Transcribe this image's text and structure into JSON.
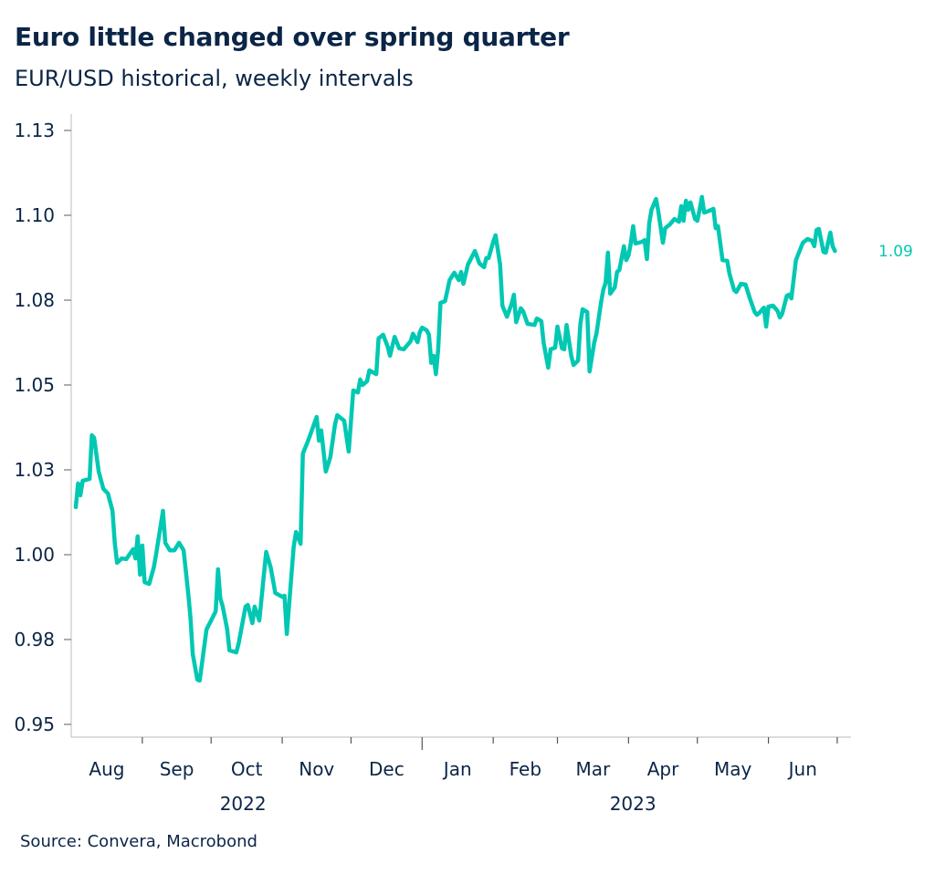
{
  "chart_data": {
    "type": "line",
    "title": "Euro little changed over spring quarter",
    "subtitle": "EUR/USD historical, weekly intervals",
    "source": "Source: Convera, Macrobond",
    "xlabel": "",
    "ylabel": "",
    "ylim": [
      0.95,
      1.125
    ],
    "yticks": [
      0.95,
      0.975,
      1.0,
      1.025,
      1.05,
      1.075,
      1.1,
      1.125
    ],
    "ytick_labels": [
      "0.95",
      "0.98",
      "1.00",
      "1.03",
      "1.05",
      "1.08",
      "1.10",
      "1.13"
    ],
    "xlim": [
      "2022-08-01",
      "2023-07-07"
    ],
    "month_labels": [
      {
        "label": "Aug",
        "start": "2022-08-01",
        "end": "2022-09-01"
      },
      {
        "label": "Sep",
        "start": "2022-09-01",
        "end": "2022-10-01"
      },
      {
        "label": "Oct",
        "start": "2022-10-01",
        "end": "2022-11-01"
      },
      {
        "label": "Nov",
        "start": "2022-11-01",
        "end": "2022-12-01"
      },
      {
        "label": "Dec",
        "start": "2022-12-01",
        "end": "2023-01-01"
      },
      {
        "label": "Jan",
        "start": "2023-01-01",
        "end": "2023-02-01"
      },
      {
        "label": "Feb",
        "start": "2023-02-01",
        "end": "2023-03-01"
      },
      {
        "label": "Mar",
        "start": "2023-03-01",
        "end": "2023-04-01"
      },
      {
        "label": "Apr",
        "start": "2023-04-01",
        "end": "2023-05-01"
      },
      {
        "label": "May",
        "start": "2023-05-01",
        "end": "2023-06-01"
      },
      {
        "label": "Jun",
        "start": "2023-06-01",
        "end": "2023-07-01"
      }
    ],
    "year_labels": [
      {
        "label": "2022",
        "start": "2022-08-01",
        "end": "2023-01-01"
      },
      {
        "label": "2023",
        "start": "2023-01-01",
        "end": "2023-07-07"
      }
    ],
    "grid": false,
    "line_color": "#00c8b2",
    "text_color": "#0b2547",
    "last_value_label": "1.09",
    "series": [
      {
        "x": [
          "2022-08-03",
          "2022-08-04",
          "2022-08-05",
          "2022-08-06",
          "2022-08-09",
          "2022-08-10",
          "2022-08-11",
          "2022-08-13",
          "2022-08-15",
          "2022-08-17",
          "2022-08-19",
          "2022-08-20",
          "2022-08-21",
          "2022-08-23",
          "2022-08-25",
          "2022-08-28",
          "2022-08-29",
          "2022-08-30",
          "2022-08-31",
          "2022-09-01",
          "2022-09-02",
          "2022-09-04",
          "2022-09-06",
          "2022-09-07",
          "2022-09-10",
          "2022-09-11",
          "2022-09-13",
          "2022-09-15",
          "2022-09-17",
          "2022-09-19",
          "2022-09-21",
          "2022-09-22",
          "2022-09-23",
          "2022-09-25",
          "2022-09-26",
          "2022-09-29",
          "2022-10-01",
          "2022-10-03",
          "2022-10-04",
          "2022-10-05",
          "2022-10-06",
          "2022-10-08",
          "2022-10-09",
          "2022-10-12",
          "2022-10-13",
          "2022-10-16",
          "2022-10-17",
          "2022-10-19",
          "2022-10-20",
          "2022-10-22",
          "2022-10-25",
          "2022-10-27",
          "2022-10-29",
          "2022-11-01",
          "2022-11-02",
          "2022-11-03",
          "2022-11-06",
          "2022-11-07",
          "2022-11-09",
          "2022-11-10",
          "2022-11-12",
          "2022-11-13",
          "2022-11-16",
          "2022-11-17",
          "2022-11-18",
          "2022-11-20",
          "2022-11-22",
          "2022-11-24",
          "2022-11-25",
          "2022-11-28",
          "2022-11-30",
          "2022-12-02",
          "2022-12-04",
          "2022-12-05",
          "2022-12-06",
          "2022-12-08",
          "2022-12-09",
          "2022-12-12",
          "2022-12-13",
          "2022-12-15",
          "2022-12-17",
          "2022-12-18",
          "2022-12-20",
          "2022-12-22",
          "2022-12-24",
          "2022-12-27",
          "2022-12-28",
          "2022-12-30",
          "2022-12-31",
          "2023-01-01",
          "2023-01-03",
          "2023-01-04",
          "2023-01-05",
          "2023-01-06",
          "2023-01-07",
          "2023-01-08",
          "2023-01-09",
          "2023-01-11",
          "2023-01-13",
          "2023-01-15",
          "2023-01-17",
          "2023-01-18",
          "2023-01-19",
          "2023-01-21",
          "2023-01-22",
          "2023-01-24",
          "2023-01-26",
          "2023-01-28",
          "2023-01-29",
          "2023-01-30",
          "2023-02-01",
          "2023-02-02",
          "2023-02-04",
          "2023-02-05",
          "2023-02-07",
          "2023-02-09",
          "2023-02-10",
          "2023-02-11",
          "2023-02-13",
          "2023-02-14",
          "2023-02-16",
          "2023-02-19",
          "2023-02-20",
          "2023-02-22",
          "2023-02-23",
          "2023-02-25",
          "2023-02-26",
          "2023-02-28",
          "2023-03-01",
          "2023-03-03",
          "2023-03-04",
          "2023-03-05",
          "2023-03-07",
          "2023-03-08",
          "2023-03-10",
          "2023-03-11",
          "2023-03-12",
          "2023-03-14",
          "2023-03-15",
          "2023-03-17",
          "2023-03-18",
          "2023-03-20",
          "2023-03-21",
          "2023-03-22",
          "2023-03-23",
          "2023-03-24",
          "2023-03-26",
          "2023-03-27",
          "2023-03-28",
          "2023-03-30",
          "2023-03-31",
          "2023-04-01",
          "2023-04-02",
          "2023-04-03",
          "2023-04-04",
          "2023-04-07",
          "2023-04-08",
          "2023-04-09",
          "2023-04-10",
          "2023-04-11",
          "2023-04-13",
          "2023-04-14",
          "2023-04-16",
          "2023-04-17",
          "2023-04-19",
          "2023-04-21",
          "2023-04-23",
          "2023-04-24",
          "2023-04-25",
          "2023-04-26",
          "2023-04-27",
          "2023-04-28",
          "2023-04-30",
          "2023-05-01",
          "2023-05-02",
          "2023-05-03",
          "2023-05-04",
          "2023-05-06",
          "2023-05-08",
          "2023-05-09",
          "2023-05-10",
          "2023-05-12",
          "2023-05-14",
          "2023-05-15",
          "2023-05-17",
          "2023-05-18",
          "2023-05-20",
          "2023-05-22",
          "2023-05-24",
          "2023-05-26",
          "2023-05-27",
          "2023-05-28",
          "2023-05-30",
          "2023-05-31",
          "2023-06-01",
          "2023-06-03",
          "2023-06-05",
          "2023-06-06",
          "2023-06-07",
          "2023-06-09",
          "2023-06-10",
          "2023-06-11",
          "2023-06-13",
          "2023-06-16",
          "2023-06-18",
          "2023-06-20",
          "2023-06-21",
          "2023-06-22",
          "2023-06-23",
          "2023-06-25",
          "2023-06-26",
          "2023-06-28",
          "2023-06-29",
          "2023-06-30"
        ],
        "y": [
          1.014,
          1.021,
          1.0175,
          1.0218,
          1.0223,
          1.0352,
          1.0344,
          1.0245,
          1.0194,
          1.018,
          1.0129,
          1.0035,
          0.9976,
          0.9989,
          0.9987,
          1.0016,
          0.9989,
          1.0054,
          0.9941,
          1.0027,
          0.9919,
          0.9914,
          0.9962,
          1.0,
          1.0129,
          1.0035,
          1.0013,
          1.0013,
          1.0035,
          1.0013,
          0.9887,
          0.9815,
          0.9707,
          0.9632,
          0.9629,
          0.978,
          0.9806,
          0.9833,
          0.9957,
          0.9871,
          0.9849,
          0.978,
          0.9718,
          0.9712,
          0.9739,
          0.9847,
          0.9852,
          0.9798,
          0.9847,
          0.9806,
          1.0008,
          0.9962,
          0.9887,
          0.9876,
          0.9879,
          0.9766,
          1.0022,
          1.0067,
          1.0032,
          1.0298,
          1.0331,
          1.0349,
          1.0406,
          1.0336,
          1.0366,
          1.0245,
          1.0288,
          1.0384,
          1.0411,
          1.0395,
          1.0304,
          1.0484,
          1.0478,
          1.0516,
          1.05,
          1.0511,
          1.0543,
          1.0532,
          1.0637,
          1.0648,
          1.0613,
          1.0586,
          1.0642,
          1.0608,
          1.0605,
          1.0629,
          1.0651,
          1.0626,
          1.0656,
          1.0669,
          1.0661,
          1.0648,
          1.0565,
          1.0586,
          1.0532,
          1.0605,
          1.0742,
          1.0747,
          1.0809,
          1.0831,
          1.0809,
          1.0833,
          1.0798,
          1.0855,
          1.0868,
          1.0895,
          1.0858,
          1.0847,
          1.0874,
          1.0874,
          1.0922,
          1.0941,
          1.0855,
          1.0734,
          1.0701,
          1.0739,
          1.0766,
          1.0685,
          1.0726,
          1.0718,
          1.068,
          1.0677,
          1.0696,
          1.0688,
          1.0624,
          1.0551,
          1.0605,
          1.061,
          1.0672,
          1.0608,
          1.0605,
          1.0677,
          1.0586,
          1.0559,
          1.0572,
          1.068,
          1.0723,
          1.0715,
          1.054,
          1.0624,
          1.0651,
          1.0742,
          1.078,
          1.0801,
          1.089,
          1.0769,
          1.0788,
          1.0833,
          1.0839,
          1.0909,
          1.0868,
          1.0882,
          1.0919,
          1.0968,
          1.0917,
          1.0922,
          1.0927,
          1.0871,
          1.0976,
          1.1016,
          1.1048,
          1.1011,
          1.0919,
          1.0962,
          1.0973,
          1.0989,
          1.0981,
          1.1027,
          1.0984,
          1.1043,
          1.1016,
          1.1038,
          1.0989,
          1.0984,
          1.1016,
          1.1054,
          1.1008,
          1.1013,
          1.1019,
          1.0962,
          1.0968,
          1.0868,
          1.0866,
          1.0828,
          1.078,
          1.0774,
          1.0798,
          1.0796,
          1.0753,
          1.0715,
          1.0707,
          1.0712,
          1.0728,
          1.0672,
          1.0731,
          1.0734,
          1.0718,
          1.0699,
          1.071,
          1.0763,
          1.0766,
          1.0755,
          1.0868,
          1.0919,
          1.093,
          1.0925,
          1.0909,
          1.0957,
          1.096,
          1.0892,
          1.089,
          1.0949,
          1.0909,
          1.0895
        ]
      }
    ]
  }
}
